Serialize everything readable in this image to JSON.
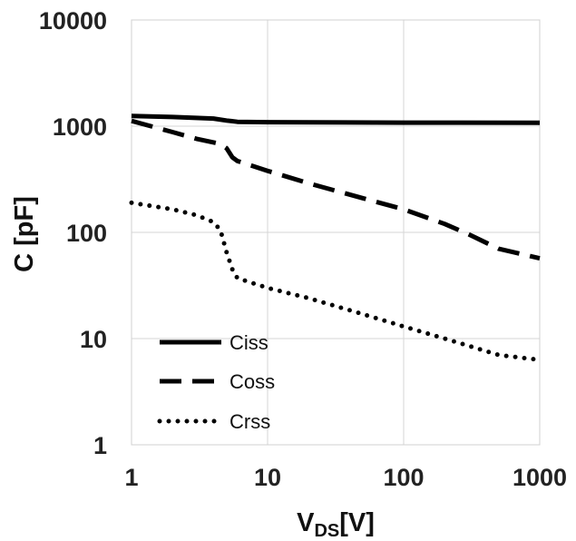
{
  "chart_data": {
    "type": "line",
    "x_scale": "log",
    "y_scale": "log",
    "xlim": [
      1,
      1000
    ],
    "ylim": [
      1,
      10000
    ],
    "grid": true,
    "legend_position": "bottom-left",
    "xlabel": {
      "main": "V",
      "sub": "DS",
      "suffix": "[V]"
    },
    "ylabel": "C [pF]",
    "x_ticks": [
      {
        "value": 1,
        "label": "1"
      },
      {
        "value": 10,
        "label": "10"
      },
      {
        "value": 100,
        "label": "100"
      },
      {
        "value": 1000,
        "label": "1000"
      }
    ],
    "y_ticks": [
      {
        "value": 1,
        "label": "1"
      },
      {
        "value": 10,
        "label": "10"
      },
      {
        "value": 100,
        "label": "100"
      },
      {
        "value": 1000,
        "label": "1000"
      },
      {
        "value": 10000,
        "label": "10000"
      }
    ],
    "series": [
      {
        "name": "Ciss",
        "style": "solid",
        "color": "#000000",
        "points": [
          [
            1,
            1250
          ],
          [
            2,
            1220
          ],
          [
            4,
            1180
          ],
          [
            5,
            1130
          ],
          [
            6,
            1100
          ],
          [
            10,
            1090
          ],
          [
            100,
            1080
          ],
          [
            1000,
            1075
          ]
        ]
      },
      {
        "name": "Coss",
        "style": "dashed",
        "color": "#000000",
        "points": [
          [
            1,
            1120
          ],
          [
            2,
            880
          ],
          [
            3,
            760
          ],
          [
            4.5,
            680
          ],
          [
            5,
            620
          ],
          [
            5.5,
            510
          ],
          [
            6,
            470
          ],
          [
            10,
            380
          ],
          [
            20,
            290
          ],
          [
            50,
            210
          ],
          [
            100,
            165
          ],
          [
            200,
            120
          ],
          [
            300,
            96
          ],
          [
            500,
            70
          ],
          [
            1000,
            57
          ]
        ]
      },
      {
        "name": "Crss",
        "style": "dotted",
        "color": "#000000",
        "points": [
          [
            1,
            190
          ],
          [
            2,
            165
          ],
          [
            3,
            145
          ],
          [
            4,
            125
          ],
          [
            4.5,
            105
          ],
          [
            5,
            65
          ],
          [
            5.5,
            45
          ],
          [
            6,
            37
          ],
          [
            10,
            30
          ],
          [
            20,
            24
          ],
          [
            50,
            17
          ],
          [
            100,
            13
          ],
          [
            200,
            10
          ],
          [
            500,
            7
          ],
          [
            1000,
            6.3
          ]
        ]
      }
    ]
  }
}
